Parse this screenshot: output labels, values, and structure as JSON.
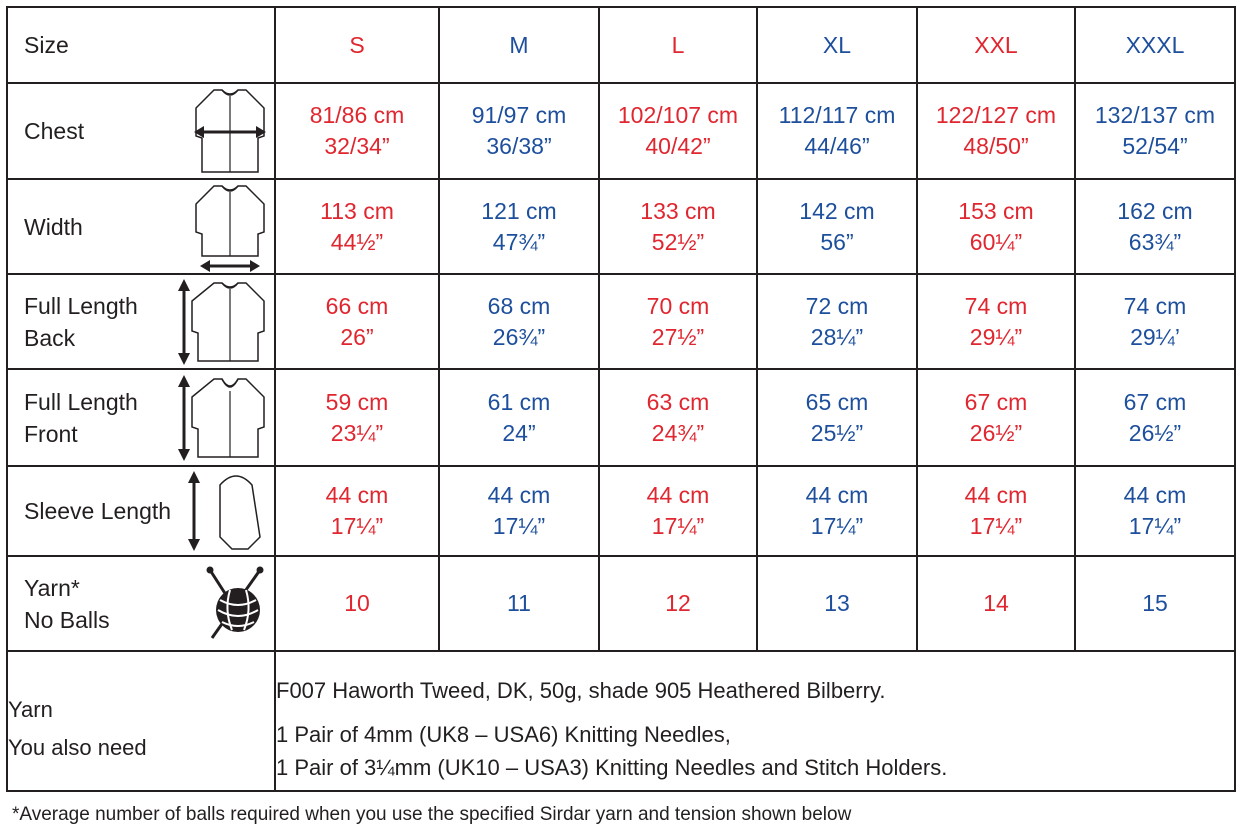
{
  "header": {
    "label": "Size",
    "sizes": [
      "S",
      "M",
      "L",
      "XL",
      "XXL",
      "XXXL"
    ]
  },
  "rows": [
    {
      "label": "Chest",
      "icon": "chest-width-garment-icon",
      "values": [
        [
          "81/86 cm",
          "32/34”"
        ],
        [
          "91/97 cm",
          "36/38”"
        ],
        [
          "102/107 cm",
          "40/42”"
        ],
        [
          "112/117 cm",
          "44/46”"
        ],
        [
          "122/127 cm",
          "48/50”"
        ],
        [
          "132/137 cm",
          "52/54”"
        ]
      ]
    },
    {
      "label": "Width",
      "icon": "hem-width-garment-icon",
      "values": [
        [
          "113 cm",
          "44½”"
        ],
        [
          "121 cm",
          "47¾”"
        ],
        [
          "133 cm",
          "52½”"
        ],
        [
          "142 cm",
          "56”"
        ],
        [
          "153 cm",
          "60¼”"
        ],
        [
          "162 cm",
          "63¾”"
        ]
      ]
    },
    {
      "label": "Full Length\nBack",
      "icon": "back-length-garment-icon",
      "values": [
        [
          "66 cm",
          "26”"
        ],
        [
          "68 cm",
          "26¾”"
        ],
        [
          "70 cm",
          "27½”"
        ],
        [
          "72 cm",
          "28¼”"
        ],
        [
          "74 cm",
          "29¼”"
        ],
        [
          "74 cm",
          "29¼’"
        ]
      ]
    },
    {
      "label": "Full Length\nFront",
      "icon": "front-length-garment-icon",
      "values": [
        [
          "59 cm",
          "23¼”"
        ],
        [
          "61 cm",
          "24”"
        ],
        [
          "63 cm",
          "24¾”"
        ],
        [
          "65 cm",
          "25½”"
        ],
        [
          "67 cm",
          "26½”"
        ],
        [
          "67 cm",
          "26½”"
        ]
      ]
    },
    {
      "label": "Sleeve Length",
      "icon": "sleeve-length-icon",
      "values": [
        [
          "44 cm",
          "17¼”"
        ],
        [
          "44 cm",
          "17¼”"
        ],
        [
          "44 cm",
          "17¼”"
        ],
        [
          "44 cm",
          "17¼”"
        ],
        [
          "44 cm",
          "17¼”"
        ],
        [
          "44 cm",
          "17¼”"
        ]
      ]
    },
    {
      "label": "Yarn*\nNo Balls",
      "icon": "yarn-ball-needles-icon",
      "values": [
        [
          "10"
        ],
        [
          "11"
        ],
        [
          "12"
        ],
        [
          "13"
        ],
        [
          "14"
        ],
        [
          "15"
        ]
      ]
    }
  ],
  "info": {
    "yarn_label": "Yarn",
    "need_label": "You also need",
    "yarn_text": "F007 Haworth Tweed, DK, 50g, shade 905 Heathered Bilberry.",
    "need_line1": "1 Pair of 4mm (UK8 – USA6) Knitting Needles,",
    "need_line2": "1 Pair of 3¼mm (UK10 – USA3) Knitting Needles and Stitch Holders."
  },
  "footnote": "*Average number of balls required when you use the specified Sirdar yarn and tension shown below",
  "colors": {
    "odd_size": "#e0262f",
    "even_size": "#1d4f9c",
    "grid": "#231f20"
  }
}
